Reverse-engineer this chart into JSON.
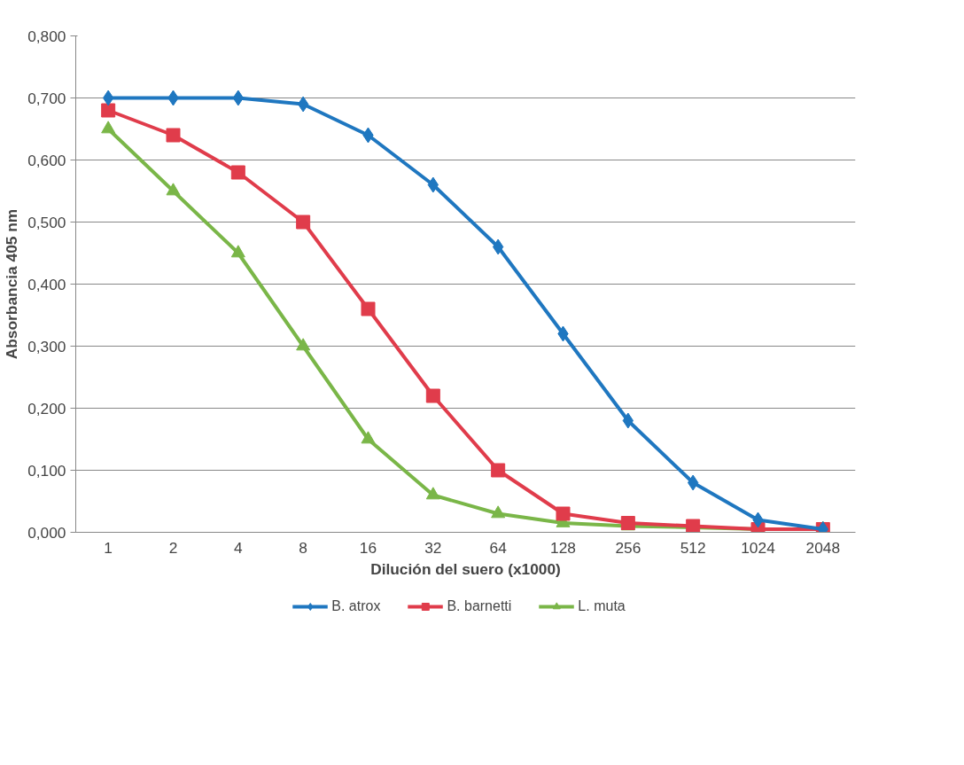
{
  "chart_data": {
    "type": "line",
    "xlabel": "Dilución del suero (x1000)",
    "ylabel": "Absorbancia 405 nm",
    "categories": [
      "1",
      "2",
      "4",
      "8",
      "16",
      "32",
      "64",
      "128",
      "256",
      "512",
      "1024",
      "2048"
    ],
    "series": [
      {
        "name": "B. atrox",
        "color": "#1f77c0",
        "marker": "diamond",
        "values": [
          0.7,
          0.7,
          0.7,
          0.69,
          0.64,
          0.56,
          0.46,
          0.32,
          0.18,
          0.08,
          0.02,
          0.005
        ]
      },
      {
        "name": "B. barnetti",
        "color": "#e03c4b",
        "marker": "square",
        "values": [
          0.68,
          0.64,
          0.58,
          0.5,
          0.36,
          0.22,
          0.1,
          0.03,
          0.015,
          0.01,
          0.005,
          0.005
        ]
      },
      {
        "name": "L. muta",
        "color": "#7ab648",
        "marker": "triangle",
        "values": [
          0.65,
          0.55,
          0.45,
          0.3,
          0.15,
          0.06,
          0.03,
          0.015,
          0.01,
          0.008,
          0.005,
          0.005
        ]
      }
    ],
    "ylim": [
      0,
      0.8
    ],
    "yticks": [
      {
        "value": 0,
        "label": "0,000"
      },
      {
        "value": 0.1,
        "label": "0,100"
      },
      {
        "value": 0.2,
        "label": "0,200"
      },
      {
        "value": 0.3,
        "label": "0,300"
      },
      {
        "value": 0.4,
        "label": "0,400"
      },
      {
        "value": 0.5,
        "label": "0,500"
      },
      {
        "value": 0.6,
        "label": "0,600"
      },
      {
        "value": 0.7,
        "label": "0,700"
      },
      {
        "value": 0.8,
        "label": "0,800"
      }
    ],
    "grid": "y",
    "legend": "bottom",
    "line_style": "solid"
  }
}
